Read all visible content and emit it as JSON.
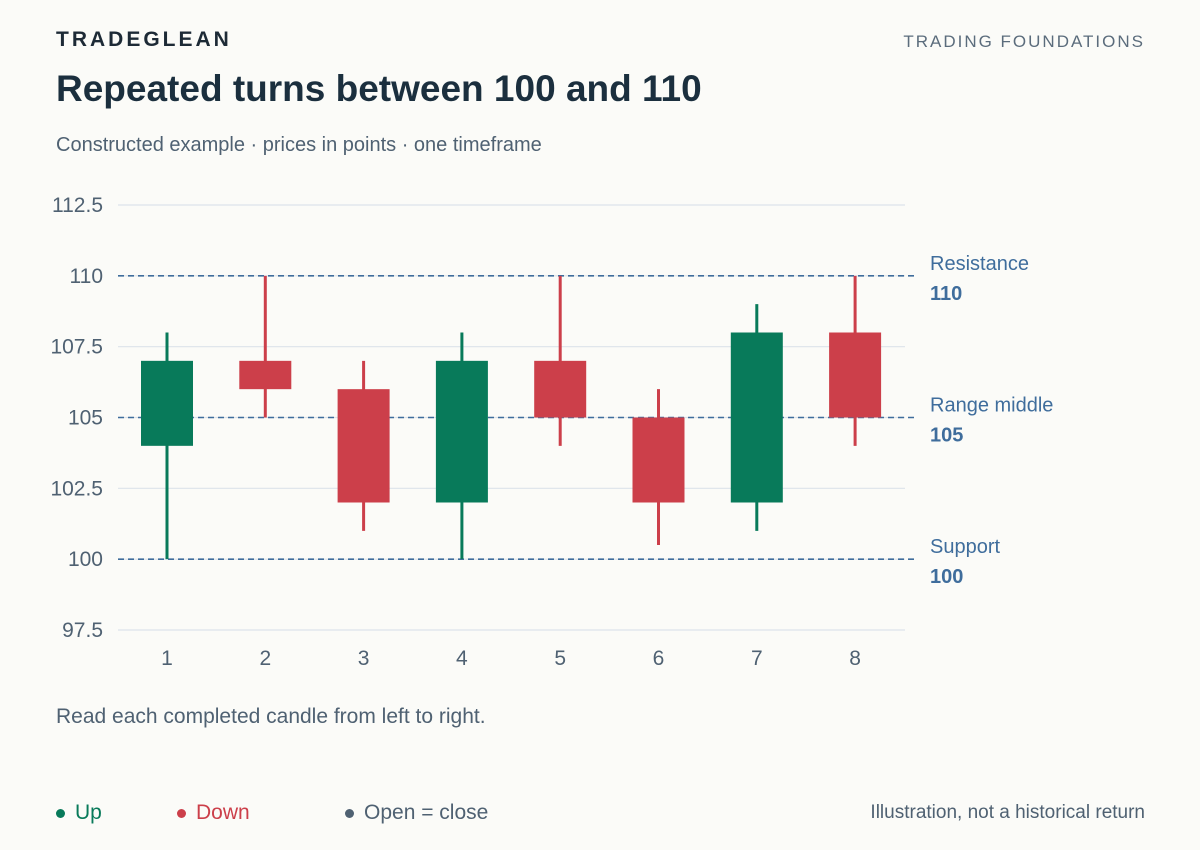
{
  "header": {
    "brand": "TRADEGLEAN",
    "section": "TRADING FOUNDATIONS",
    "title": "Repeated turns between 100 and 110",
    "subtitle": "Constructed example · prices in points · one timeframe"
  },
  "note": "Read each completed candle from left to right.",
  "legend": {
    "up": "Up",
    "down": "Down",
    "flat": "Open = close"
  },
  "disclaimer": "Illustration, not a historical return",
  "colors": {
    "up": "#087a5a",
    "down": "#cc3f4a",
    "reference": "#3f6d9c",
    "grid": "#dde3ea",
    "axis_text": "#4f6172"
  },
  "chart_data": {
    "type": "candlestick",
    "categories": [
      "1",
      "2",
      "3",
      "4",
      "5",
      "6",
      "7",
      "8"
    ],
    "candles": [
      {
        "x": "1",
        "open": 104,
        "high": 108,
        "low": 100,
        "close": 107
      },
      {
        "x": "2",
        "open": 107,
        "high": 110,
        "low": 105,
        "close": 106
      },
      {
        "x": "3",
        "open": 106,
        "high": 107,
        "low": 101,
        "close": 102
      },
      {
        "x": "4",
        "open": 102,
        "high": 108,
        "low": 100,
        "close": 107
      },
      {
        "x": "5",
        "open": 107,
        "high": 110,
        "low": 104,
        "close": 105
      },
      {
        "x": "6",
        "open": 105,
        "high": 106,
        "low": 100.5,
        "close": 102
      },
      {
        "x": "7",
        "open": 102,
        "high": 109,
        "low": 101,
        "close": 108
      },
      {
        "x": "8",
        "open": 108,
        "high": 110,
        "low": 104,
        "close": 105
      }
    ],
    "ylim": [
      97.5,
      112.5
    ],
    "yticks": [
      "97.5",
      "100",
      "102.5",
      "105",
      "107.5",
      "110",
      "112.5"
    ],
    "grid": true,
    "reference_lines": [
      {
        "value": 110,
        "name": "Resistance",
        "label": "110"
      },
      {
        "value": 105,
        "name": "Range middle",
        "label": "105"
      },
      {
        "value": 100,
        "name": "Support",
        "label": "100"
      }
    ]
  }
}
